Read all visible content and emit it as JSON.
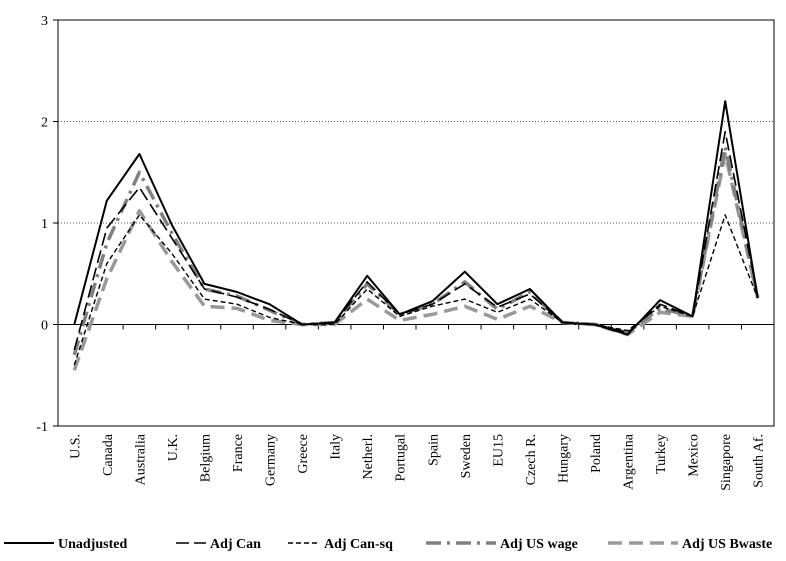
{
  "chart_data": {
    "type": "line",
    "title": "",
    "xlabel": "",
    "ylabel": "",
    "ylim": [
      -1,
      3
    ],
    "yticks": [
      -1,
      0,
      1,
      2,
      3
    ],
    "grid": "horizontal dotted at 1 and 2",
    "legend_position": "bottom",
    "categories": [
      "U.S.",
      "Canada",
      "Australia",
      "U.K.",
      "Belgium",
      "France",
      "Germany",
      "Greece",
      "Italy",
      "Netherl.",
      "Portugal",
      "Spain",
      "Sweden",
      "EU15",
      "Czech R.",
      "Hungary",
      "Poland",
      "Argentina",
      "Turkey",
      "Mexico",
      "Singapore",
      "South Af."
    ],
    "series": [
      {
        "name": "Unadjusted",
        "style": "solid",
        "color": "#000000",
        "width": 2,
        "values": [
          0.0,
          1.22,
          1.68,
          0.98,
          0.4,
          0.32,
          0.2,
          0.0,
          0.02,
          0.48,
          0.1,
          0.23,
          0.52,
          0.2,
          0.35,
          0.02,
          0.0,
          -0.1,
          0.24,
          0.08,
          2.2,
          0.26
        ]
      },
      {
        "name": "Adj Can",
        "style": "longdash",
        "color": "#000000",
        "width": 1.6,
        "values": [
          -0.25,
          0.95,
          1.35,
          0.85,
          0.35,
          0.27,
          0.15,
          0.0,
          0.02,
          0.42,
          0.1,
          0.2,
          0.4,
          0.17,
          0.3,
          0.02,
          0.0,
          -0.08,
          0.2,
          0.08,
          1.9,
          0.28
        ]
      },
      {
        "name": "Adj Can-sq",
        "style": "shortdash",
        "color": "#000000",
        "width": 1.4,
        "values": [
          -0.4,
          0.6,
          1.08,
          0.7,
          0.25,
          0.2,
          0.07,
          0.0,
          0.0,
          0.35,
          0.08,
          0.18,
          0.25,
          0.12,
          0.25,
          0.02,
          0.0,
          -0.06,
          0.18,
          0.08,
          1.08,
          0.26
        ]
      },
      {
        "name": "Adj US  wage",
        "style": "dashdot",
        "color": "#808080",
        "width": 3.5,
        "values": [
          -0.3,
          0.8,
          1.5,
          0.9,
          0.35,
          0.28,
          0.14,
          0.0,
          0.02,
          0.4,
          0.1,
          0.2,
          0.42,
          0.15,
          0.32,
          0.02,
          0.0,
          -0.08,
          0.16,
          0.08,
          1.75,
          0.27
        ]
      },
      {
        "name": "Adj US  Bwaste",
        "style": "dash",
        "color": "#999999",
        "width": 3.5,
        "values": [
          -0.45,
          0.45,
          1.12,
          0.62,
          0.18,
          0.16,
          0.04,
          0.0,
          0.0,
          0.25,
          0.04,
          0.1,
          0.18,
          0.05,
          0.18,
          0.02,
          0.0,
          -0.1,
          0.12,
          0.08,
          1.68,
          0.26
        ]
      }
    ]
  }
}
